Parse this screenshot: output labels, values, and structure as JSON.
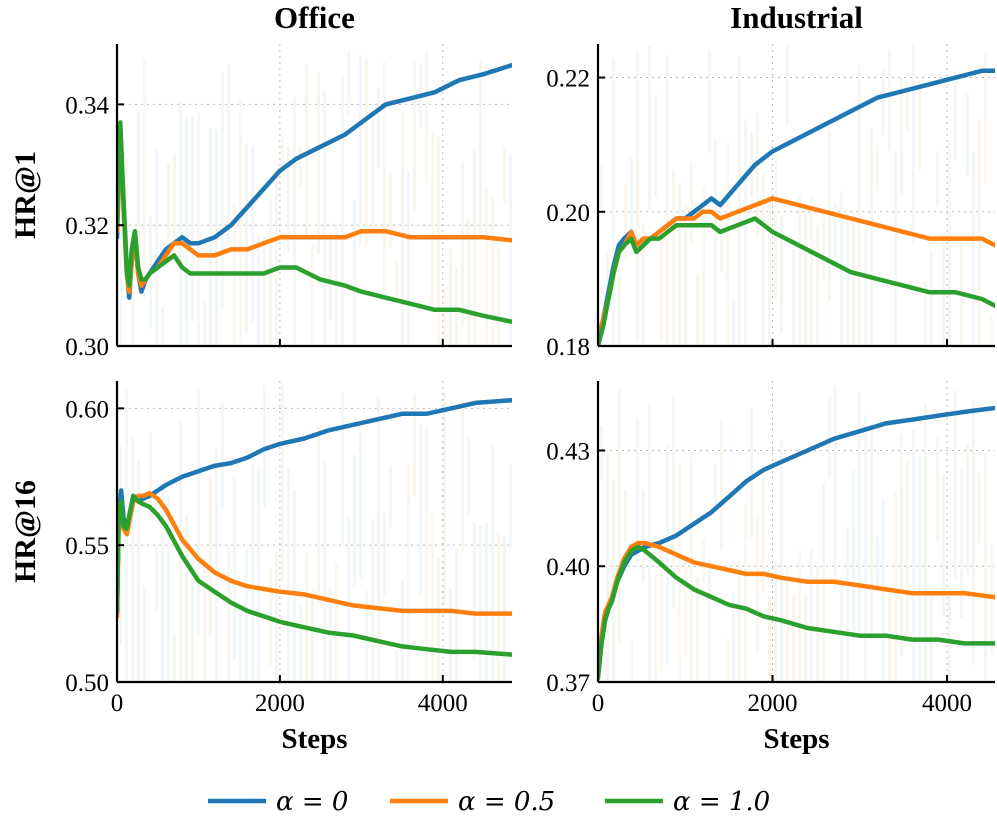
{
  "chart_data": [
    {
      "type": "line",
      "panel": "top-left",
      "title": "Office",
      "ylabel": "HR@1",
      "xlabel": "",
      "xlim": [
        0,
        4850
      ],
      "ylim": [
        0.3,
        0.35
      ],
      "xticks": [
        0,
        2000,
        4000
      ],
      "xtick_labels": [
        "0",
        "2000",
        "4000"
      ],
      "yticks": [
        0.3,
        0.32,
        0.34
      ],
      "ytick_labels": [
        "0.30",
        "0.32",
        "0.34"
      ],
      "series": [
        {
          "name": "α=0",
          "color": "#1f77b4",
          "x": [
            0,
            40,
            80,
            120,
            150,
            180,
            220,
            260,
            300,
            350,
            400,
            500,
            600,
            700,
            800,
            900,
            1000,
            1200,
            1400,
            1600,
            1800,
            2000,
            2200,
            2500,
            2800,
            3000,
            3300,
            3600,
            3900,
            4200,
            4500,
            4850
          ],
          "y": [
            0.318,
            0.336,
            0.324,
            0.313,
            0.308,
            0.314,
            0.318,
            0.312,
            0.309,
            0.311,
            0.312,
            0.314,
            0.316,
            0.317,
            0.318,
            0.317,
            0.317,
            0.318,
            0.32,
            0.323,
            0.326,
            0.329,
            0.331,
            0.333,
            0.335,
            0.337,
            0.34,
            0.341,
            0.342,
            0.344,
            0.345,
            0.3465
          ]
        },
        {
          "name": "α=0.5",
          "color": "#ff7f0e",
          "x": [
            0,
            40,
            80,
            120,
            150,
            180,
            220,
            260,
            300,
            350,
            400,
            500,
            600,
            700,
            800,
            900,
            1000,
            1200,
            1400,
            1600,
            1800,
            2000,
            2200,
            2500,
            2800,
            3000,
            3300,
            3600,
            3900,
            4200,
            4500,
            4850
          ],
          "y": [
            0.319,
            0.335,
            0.323,
            0.312,
            0.309,
            0.314,
            0.318,
            0.312,
            0.31,
            0.311,
            0.312,
            0.313,
            0.315,
            0.317,
            0.317,
            0.316,
            0.315,
            0.315,
            0.316,
            0.316,
            0.317,
            0.318,
            0.318,
            0.318,
            0.318,
            0.319,
            0.319,
            0.318,
            0.318,
            0.318,
            0.318,
            0.3175
          ]
        },
        {
          "name": "α=1.0",
          "color": "#2ca02c",
          "x": [
            0,
            40,
            80,
            120,
            150,
            180,
            220,
            260,
            300,
            350,
            400,
            500,
            600,
            700,
            800,
            900,
            1000,
            1200,
            1400,
            1600,
            1800,
            2000,
            2200,
            2500,
            2800,
            3000,
            3300,
            3600,
            3900,
            4200,
            4500,
            4850
          ],
          "y": [
            0.32,
            0.337,
            0.324,
            0.312,
            0.31,
            0.316,
            0.319,
            0.313,
            0.311,
            0.311,
            0.312,
            0.313,
            0.314,
            0.315,
            0.313,
            0.312,
            0.312,
            0.312,
            0.312,
            0.312,
            0.312,
            0.313,
            0.313,
            0.311,
            0.31,
            0.309,
            0.308,
            0.307,
            0.306,
            0.306,
            0.305,
            0.304
          ]
        }
      ]
    },
    {
      "type": "line",
      "panel": "top-right",
      "title": "Industrial",
      "ylabel": "",
      "xlabel": "",
      "xlim": [
        0,
        4550
      ],
      "ylim": [
        0.18,
        0.225
      ],
      "xticks": [
        0,
        2000,
        4000
      ],
      "xtick_labels": [
        "0",
        "2000",
        "4000"
      ],
      "yticks": [
        0.18,
        0.2,
        0.22
      ],
      "ytick_labels": [
        "0.18",
        "0.20",
        "0.22"
      ],
      "series": [
        {
          "name": "α=0",
          "color": "#1f77b4",
          "x": [
            0,
            60,
            120,
            180,
            240,
            300,
            380,
            440,
            520,
            600,
            700,
            800,
            900,
            1000,
            1100,
            1200,
            1300,
            1400,
            1600,
            1800,
            2000,
            2300,
            2600,
            2900,
            3200,
            3500,
            3800,
            4100,
            4400,
            4550
          ],
          "y": [
            0.181,
            0.184,
            0.188,
            0.192,
            0.195,
            0.196,
            0.197,
            0.195,
            0.196,
            0.196,
            0.197,
            0.198,
            0.199,
            0.199,
            0.2,
            0.201,
            0.202,
            0.201,
            0.204,
            0.207,
            0.209,
            0.211,
            0.213,
            0.215,
            0.217,
            0.218,
            0.219,
            0.22,
            0.221,
            0.221
          ]
        },
        {
          "name": "α=0.5",
          "color": "#ff7f0e",
          "x": [
            0,
            60,
            120,
            180,
            240,
            300,
            380,
            440,
            520,
            600,
            700,
            800,
            900,
            1000,
            1100,
            1200,
            1300,
            1400,
            1600,
            1800,
            2000,
            2300,
            2600,
            2900,
            3200,
            3500,
            3800,
            4100,
            4400,
            4550
          ],
          "y": [
            0.181,
            0.184,
            0.187,
            0.191,
            0.194,
            0.195,
            0.197,
            0.195,
            0.196,
            0.196,
            0.197,
            0.198,
            0.199,
            0.199,
            0.199,
            0.2,
            0.2,
            0.199,
            0.2,
            0.201,
            0.202,
            0.201,
            0.2,
            0.199,
            0.198,
            0.197,
            0.196,
            0.196,
            0.196,
            0.195
          ]
        },
        {
          "name": "α=1.0",
          "color": "#2ca02c",
          "x": [
            0,
            60,
            120,
            180,
            240,
            300,
            380,
            440,
            520,
            600,
            700,
            800,
            900,
            1000,
            1100,
            1200,
            1300,
            1400,
            1600,
            1800,
            2000,
            2300,
            2600,
            2900,
            3200,
            3500,
            3800,
            4100,
            4400,
            4550
          ],
          "y": [
            0.18,
            0.183,
            0.187,
            0.191,
            0.194,
            0.195,
            0.196,
            0.194,
            0.195,
            0.196,
            0.196,
            0.197,
            0.198,
            0.198,
            0.198,
            0.198,
            0.198,
            0.197,
            0.198,
            0.199,
            0.197,
            0.195,
            0.193,
            0.191,
            0.19,
            0.189,
            0.188,
            0.188,
            0.187,
            0.186
          ]
        }
      ]
    },
    {
      "type": "line",
      "panel": "bottom-left",
      "title": "",
      "ylabel": "HR@16",
      "xlabel": "Steps",
      "xlim": [
        0,
        4850
      ],
      "ylim": [
        0.5,
        0.61
      ],
      "xticks": [
        0,
        2000,
        4000
      ],
      "xtick_labels": [
        "0",
        "2000",
        "4000"
      ],
      "yticks": [
        0.5,
        0.55,
        0.6
      ],
      "ytick_labels": [
        "0.50",
        "0.55",
        "0.60"
      ],
      "series": [
        {
          "name": "α=0",
          "color": "#1f77b4",
          "x": [
            0,
            20,
            50,
            80,
            120,
            160,
            200,
            260,
            320,
            400,
            500,
            600,
            800,
            1000,
            1200,
            1400,
            1600,
            1800,
            2000,
            2300,
            2600,
            2900,
            3200,
            3500,
            3800,
            4100,
            4400,
            4850
          ],
          "y": [
            0.525,
            0.56,
            0.57,
            0.56,
            0.556,
            0.562,
            0.568,
            0.566,
            0.567,
            0.568,
            0.57,
            0.572,
            0.575,
            0.577,
            0.579,
            0.58,
            0.582,
            0.585,
            0.587,
            0.589,
            0.592,
            0.594,
            0.596,
            0.598,
            0.598,
            0.6,
            0.602,
            0.603
          ]
        },
        {
          "name": "α=0.5",
          "color": "#ff7f0e",
          "x": [
            0,
            20,
            50,
            80,
            120,
            160,
            200,
            260,
            320,
            400,
            500,
            600,
            800,
            1000,
            1200,
            1400,
            1600,
            1800,
            2000,
            2300,
            2600,
            2900,
            3200,
            3500,
            3800,
            4100,
            4400,
            4850
          ],
          "y": [
            0.524,
            0.558,
            0.565,
            0.556,
            0.554,
            0.56,
            0.566,
            0.568,
            0.568,
            0.569,
            0.567,
            0.563,
            0.552,
            0.545,
            0.54,
            0.537,
            0.535,
            0.534,
            0.533,
            0.532,
            0.53,
            0.528,
            0.527,
            0.526,
            0.526,
            0.526,
            0.525,
            0.525
          ]
        },
        {
          "name": "α=1.0",
          "color": "#2ca02c",
          "x": [
            0,
            20,
            50,
            80,
            120,
            160,
            200,
            260,
            320,
            400,
            500,
            600,
            800,
            1000,
            1200,
            1400,
            1600,
            1800,
            2000,
            2300,
            2600,
            2900,
            3200,
            3500,
            3800,
            4100,
            4400,
            4850
          ],
          "y": [
            0.526,
            0.559,
            0.566,
            0.557,
            0.556,
            0.562,
            0.568,
            0.566,
            0.565,
            0.564,
            0.561,
            0.557,
            0.546,
            0.537,
            0.533,
            0.529,
            0.526,
            0.524,
            0.522,
            0.52,
            0.518,
            0.517,
            0.515,
            0.513,
            0.512,
            0.511,
            0.511,
            0.51
          ]
        }
      ]
    },
    {
      "type": "line",
      "panel": "bottom-right",
      "title": "",
      "ylabel": "",
      "xlabel": "Steps",
      "xlim": [
        0,
        4550
      ],
      "ylim": [
        0.37,
        0.448
      ],
      "xticks": [
        0,
        2000,
        4000
      ],
      "xtick_labels": [
        "0",
        "2000",
        "4000"
      ],
      "yticks": [
        0.37,
        0.4,
        0.43
      ],
      "ytick_labels": [
        "0.37",
        "0.40",
        "0.43"
      ],
      "series": [
        {
          "name": "α=0",
          "color": "#1f77b4",
          "x": [
            0,
            40,
            80,
            120,
            160,
            220,
            300,
            380,
            460,
            540,
            700,
            900,
            1100,
            1300,
            1500,
            1700,
            1900,
            2100,
            2400,
            2700,
            3000,
            3300,
            3600,
            3900,
            4200,
            4550
          ],
          "y": [
            0.372,
            0.38,
            0.386,
            0.389,
            0.391,
            0.396,
            0.4,
            0.403,
            0.404,
            0.405,
            0.406,
            0.408,
            0.411,
            0.414,
            0.418,
            0.422,
            0.425,
            0.427,
            0.43,
            0.433,
            0.435,
            0.437,
            0.438,
            0.439,
            0.44,
            0.441
          ]
        },
        {
          "name": "α=0.5",
          "color": "#ff7f0e",
          "x": [
            0,
            40,
            80,
            120,
            160,
            220,
            300,
            380,
            460,
            540,
            700,
            900,
            1100,
            1300,
            1500,
            1700,
            1900,
            2100,
            2400,
            2700,
            3000,
            3300,
            3600,
            3900,
            4200,
            4550
          ],
          "y": [
            0.373,
            0.382,
            0.388,
            0.39,
            0.392,
            0.397,
            0.402,
            0.405,
            0.406,
            0.406,
            0.405,
            0.403,
            0.401,
            0.4,
            0.399,
            0.398,
            0.398,
            0.397,
            0.396,
            0.396,
            0.395,
            0.394,
            0.393,
            0.393,
            0.393,
            0.392
          ]
        },
        {
          "name": "α=1.0",
          "color": "#2ca02c",
          "x": [
            0,
            40,
            80,
            120,
            160,
            220,
            300,
            380,
            460,
            540,
            700,
            900,
            1100,
            1300,
            1500,
            1700,
            1900,
            2100,
            2400,
            2700,
            3000,
            3300,
            3600,
            3900,
            4200,
            4550
          ],
          "y": [
            0.371,
            0.38,
            0.386,
            0.389,
            0.391,
            0.396,
            0.401,
            0.404,
            0.405,
            0.404,
            0.401,
            0.397,
            0.394,
            0.392,
            0.39,
            0.389,
            0.387,
            0.386,
            0.384,
            0.383,
            0.382,
            0.382,
            0.381,
            0.381,
            0.38,
            0.38
          ]
        }
      ]
    }
  ],
  "legend": {
    "position": "bottom-center",
    "entries": [
      {
        "label": "α = 0",
        "color": "#1f77b4"
      },
      {
        "label": "α = 0.5",
        "color": "#ff7f0e"
      },
      {
        "label": "α = 1.0",
        "color": "#2ca02c"
      }
    ]
  }
}
